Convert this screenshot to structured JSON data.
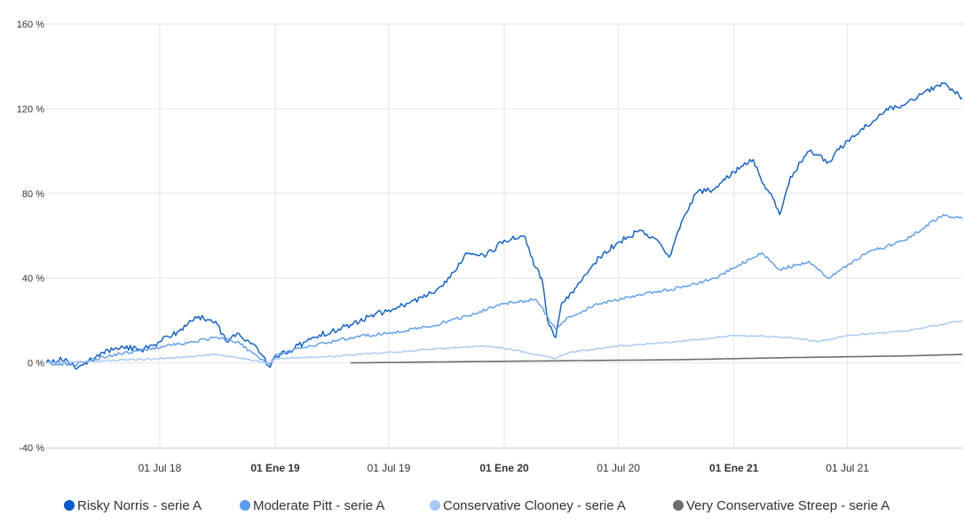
{
  "chart_data": {
    "type": "line",
    "title": "",
    "xlabel": "",
    "ylabel": "",
    "ylim": [
      -40,
      160
    ],
    "xlim": [
      "2018-01-01",
      "2021-12-31"
    ],
    "y_ticks": [
      "160 %",
      "120 %",
      "80 %",
      "40 %",
      "0 %",
      "-40 %"
    ],
    "y_tick_values": [
      160,
      120,
      80,
      40,
      0,
      -40
    ],
    "x_ticks": [
      {
        "label": "01 Jul 18",
        "date": "2018-07-01",
        "bold": false
      },
      {
        "label": "01 Ene 19",
        "date": "2019-01-01",
        "bold": true
      },
      {
        "label": "01 Jul 19",
        "date": "2019-07-01",
        "bold": false
      },
      {
        "label": "01 Ene 20",
        "date": "2020-01-01",
        "bold": true
      },
      {
        "label": "01 Jul 20",
        "date": "2020-07-01",
        "bold": false
      },
      {
        "label": "01 Ene 21",
        "date": "2021-01-01",
        "bold": true
      },
      {
        "label": "01 Jul 21",
        "date": "2021-07-01",
        "bold": false
      }
    ],
    "grid": true,
    "legend_position": "bottom",
    "series": [
      {
        "name": "Risky Norris - serie A",
        "color": "#0a5ccc",
        "x": [
          "2018-01-01",
          "2018-02-01",
          "2018-02-15",
          "2018-03-01",
          "2018-04-01",
          "2018-05-01",
          "2018-06-01",
          "2018-07-01",
          "2018-08-01",
          "2018-09-01",
          "2018-10-01",
          "2018-10-15",
          "2018-11-01",
          "2018-12-01",
          "2018-12-24",
          "2019-01-01",
          "2019-02-01",
          "2019-03-01",
          "2019-04-01",
          "2019-05-01",
          "2019-06-01",
          "2019-07-01",
          "2019-08-01",
          "2019-09-01",
          "2019-10-01",
          "2019-11-01",
          "2019-12-01",
          "2020-01-01",
          "2020-02-01",
          "2020-02-20",
          "2020-03-01",
          "2020-03-10",
          "2020-03-23",
          "2020-04-01",
          "2020-05-01",
          "2020-06-01",
          "2020-07-01",
          "2020-08-01",
          "2020-09-01",
          "2020-09-20",
          "2020-10-15",
          "2020-11-01",
          "2020-12-01",
          "2021-01-01",
          "2021-02-01",
          "2021-02-15",
          "2021-03-01",
          "2021-03-15",
          "2021-04-01",
          "2021-05-01",
          "2021-05-15",
          "2021-06-01",
          "2021-07-01",
          "2021-08-01",
          "2021-09-01",
          "2021-10-01",
          "2021-11-01",
          "2021-12-01",
          "2021-12-31"
        ],
        "values": [
          0,
          2,
          -2,
          -1,
          5,
          8,
          6,
          10,
          15,
          22,
          18,
          10,
          14,
          8,
          -2,
          3,
          7,
          12,
          15,
          18,
          22,
          25,
          28,
          32,
          38,
          52,
          50,
          58,
          60,
          45,
          40,
          20,
          12,
          28,
          38,
          50,
          57,
          62,
          58,
          50,
          70,
          80,
          82,
          90,
          96,
          85,
          80,
          70,
          88,
          100,
          98,
          95,
          105,
          112,
          120,
          122,
          128,
          132,
          125
        ]
      },
      {
        "name": "Moderate Pitt - serie A",
        "color": "#5b9cee",
        "x": [
          "2018-01-01",
          "2018-02-15",
          "2018-04-01",
          "2018-06-01",
          "2018-08-01",
          "2018-10-01",
          "2018-11-01",
          "2018-12-24",
          "2019-01-01",
          "2019-03-01",
          "2019-05-01",
          "2019-07-01",
          "2019-09-01",
          "2019-11-01",
          "2020-01-01",
          "2020-02-20",
          "2020-03-23",
          "2020-04-15",
          "2020-06-01",
          "2020-08-01",
          "2020-10-15",
          "2020-12-01",
          "2021-02-15",
          "2021-03-15",
          "2021-05-01",
          "2021-06-01",
          "2021-08-01",
          "2021-10-01",
          "2021-12-01",
          "2021-12-31"
        ],
        "values": [
          0,
          -1,
          3,
          6,
          9,
          12,
          10,
          -1,
          4,
          8,
          12,
          14,
          17,
          22,
          28,
          30,
          16,
          22,
          28,
          32,
          36,
          40,
          52,
          44,
          48,
          40,
          52,
          58,
          70,
          68
        ]
      },
      {
        "name": "Conservative Clooney - serie A",
        "color": "#a5c8f7",
        "x": [
          "2018-01-01",
          "2018-04-01",
          "2018-07-01",
          "2018-10-01",
          "2018-12-24",
          "2019-01-01",
          "2019-04-01",
          "2019-07-01",
          "2019-10-01",
          "2019-12-01",
          "2020-01-01",
          "2020-03-23",
          "2020-04-15",
          "2020-07-01",
          "2020-10-01",
          "2021-01-01",
          "2021-04-01",
          "2021-05-15",
          "2021-07-01",
          "2021-10-01",
          "2021-12-31"
        ],
        "values": [
          0,
          1,
          2,
          4,
          0,
          2,
          3,
          5,
          7,
          8,
          7,
          2,
          5,
          8,
          10,
          13,
          12,
          10,
          13,
          15,
          20
        ]
      },
      {
        "name": "Very Conservative Streep - serie A",
        "color": "#6e6e6e",
        "x": [
          "2019-05-01",
          "2019-10-01",
          "2020-04-01",
          "2020-10-01",
          "2021-04-01",
          "2021-10-01",
          "2021-12-31"
        ],
        "values": [
          0,
          0.5,
          1,
          1.5,
          2.5,
          3.3,
          4
        ]
      }
    ]
  },
  "legend": {
    "items": [
      {
        "label": "Risky Norris - serie A",
        "color": "#0a5ccc"
      },
      {
        "label": "Moderate Pitt - serie A",
        "color": "#5b9cee"
      },
      {
        "label": "Conservative Clooney - serie A",
        "color": "#a5c8f7"
      },
      {
        "label": "Very Conservative Streep - serie A",
        "color": "#6e6e6e"
      }
    ]
  }
}
